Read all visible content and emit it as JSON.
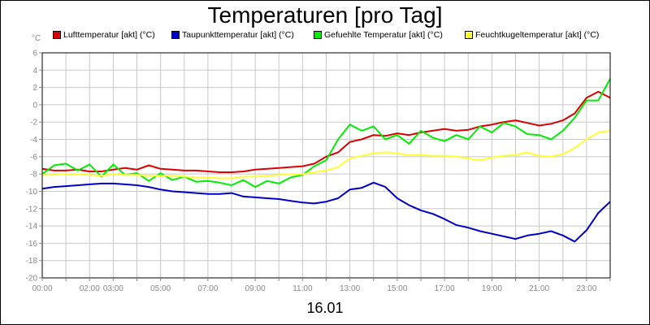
{
  "chart_data": {
    "type": "line",
    "title": "Temperaturen [pro Tag]",
    "xlabel": "16.01",
    "ylabel": "°C",
    "ylim": [
      -20,
      6
    ],
    "xlim": [
      0,
      24
    ],
    "grid": true,
    "legend_position": "top",
    "y_ticks": [
      6,
      4,
      2,
      0,
      -2,
      -4,
      -6,
      -8,
      -10,
      -12,
      -14,
      -16,
      -18,
      -20
    ],
    "x_tick_labels": [
      {
        "x": 0,
        "label": "00:00"
      },
      {
        "x": 2,
        "label": "02:00"
      },
      {
        "x": 3,
        "label": "03:00"
      },
      {
        "x": 5,
        "label": "05:00"
      },
      {
        "x": 7,
        "label": "07:00"
      },
      {
        "x": 9,
        "label": "09:00"
      },
      {
        "x": 11,
        "label": "11:00"
      },
      {
        "x": 13,
        "label": "13:00"
      },
      {
        "x": 15,
        "label": "15:00"
      },
      {
        "x": 17,
        "label": "17:00"
      },
      {
        "x": 19,
        "label": "19:00"
      },
      {
        "x": 21,
        "label": "21:00"
      },
      {
        "x": 23,
        "label": "23:00"
      }
    ],
    "series": [
      {
        "name": "Lufttemperatur [akt] (°C)",
        "color": "#dd0000",
        "x": [
          0,
          0.5,
          1,
          1.5,
          2,
          2.5,
          3,
          3.5,
          4,
          4.5,
          5,
          5.5,
          6,
          6.5,
          7,
          7.5,
          8,
          8.5,
          9,
          9.5,
          10,
          10.5,
          11,
          11.5,
          12,
          12.5,
          13,
          13.5,
          14,
          14.5,
          15,
          15.5,
          16,
          16.5,
          17,
          17.5,
          18,
          18.5,
          19,
          19.5,
          20,
          20.5,
          21,
          21.5,
          22,
          22.5,
          23,
          23.5,
          24
        ],
        "values": [
          -7.4,
          -7.6,
          -7.6,
          -7.5,
          -7.7,
          -7.7,
          -7.5,
          -7.3,
          -7.5,
          -7.0,
          -7.4,
          -7.5,
          -7.6,
          -7.6,
          -7.7,
          -7.8,
          -7.8,
          -7.7,
          -7.5,
          -7.4,
          -7.3,
          -7.2,
          -7.1,
          -6.8,
          -6.0,
          -5.5,
          -4.3,
          -4.0,
          -3.5,
          -3.6,
          -3.3,
          -3.5,
          -3.2,
          -3.0,
          -2.8,
          -3.0,
          -2.9,
          -2.5,
          -2.3,
          -2.0,
          -1.8,
          -2.1,
          -2.4,
          -2.2,
          -1.8,
          -1.0,
          0.8,
          1.5,
          0.8
        ]
      },
      {
        "name": "Taupunkttemperatur [akt] (°C)",
        "color": "#0000cc",
        "x": [
          0,
          0.5,
          1,
          1.5,
          2,
          2.5,
          3,
          3.5,
          4,
          4.5,
          5,
          5.5,
          6,
          6.5,
          7,
          7.5,
          8,
          8.5,
          9,
          9.5,
          10,
          10.5,
          11,
          11.5,
          12,
          12.5,
          13,
          13.5,
          14,
          14.5,
          15,
          15.5,
          16,
          16.5,
          17,
          17.5,
          18,
          18.5,
          19,
          19.5,
          20,
          20.5,
          21,
          21.5,
          22,
          22.5,
          23,
          23.5,
          24
        ],
        "values": [
          -9.7,
          -9.5,
          -9.4,
          -9.3,
          -9.2,
          -9.1,
          -9.1,
          -9.2,
          -9.3,
          -9.5,
          -9.8,
          -10.0,
          -10.1,
          -10.2,
          -10.3,
          -10.3,
          -10.2,
          -10.6,
          -10.7,
          -10.8,
          -10.9,
          -11.1,
          -11.3,
          -11.4,
          -11.2,
          -10.8,
          -9.8,
          -9.6,
          -9.0,
          -9.5,
          -10.8,
          -11.6,
          -12.2,
          -12.6,
          -13.2,
          -13.9,
          -14.2,
          -14.6,
          -14.9,
          -15.2,
          -15.5,
          -15.1,
          -14.9,
          -14.6,
          -15.1,
          -15.8,
          -14.5,
          -12.5,
          -11.2
        ]
      },
      {
        "name": "Gefuehlte Temperatur [akt] (°C)",
        "color": "#00ee00",
        "x": [
          0,
          0.5,
          1,
          1.5,
          2,
          2.5,
          3,
          3.5,
          4,
          4.5,
          5,
          5.5,
          6,
          6.5,
          7,
          7.5,
          8,
          8.5,
          9,
          9.5,
          10,
          10.5,
          11,
          11.5,
          12,
          12.5,
          13,
          13.5,
          14,
          14.5,
          15,
          15.5,
          16,
          16.5,
          17,
          17.5,
          18,
          18.5,
          19,
          19.5,
          20,
          20.5,
          21,
          21.5,
          22,
          22.5,
          23,
          23.5,
          24
        ],
        "values": [
          -8.0,
          -7.0,
          -6.8,
          -7.6,
          -6.9,
          -8.3,
          -6.9,
          -8.1,
          -7.9,
          -8.8,
          -7.9,
          -8.7,
          -8.3,
          -8.9,
          -8.8,
          -9.0,
          -9.3,
          -8.7,
          -9.5,
          -8.8,
          -9.1,
          -8.4,
          -8.1,
          -7.1,
          -6.4,
          -4.0,
          -2.3,
          -3.0,
          -2.5,
          -4.0,
          -3.5,
          -4.5,
          -3.0,
          -3.8,
          -4.2,
          -3.5,
          -4.0,
          -2.5,
          -3.2,
          -2.1,
          -2.5,
          -3.4,
          -3.5,
          -4.0,
          -3.0,
          -1.5,
          0.5,
          0.5,
          3.0
        ]
      },
      {
        "name": "Feuchtkugeltemperatur [akt] (°C)",
        "color": "#ffff33",
        "x": [
          0,
          0.5,
          1,
          1.5,
          2,
          2.5,
          3,
          3.5,
          4,
          4.5,
          5,
          5.5,
          6,
          6.5,
          7,
          7.5,
          8,
          8.5,
          9,
          9.5,
          10,
          10.5,
          11,
          11.5,
          12,
          12.5,
          13,
          13.5,
          14,
          14.5,
          15,
          15.5,
          16,
          16.5,
          17,
          17.5,
          18,
          18.5,
          19,
          19.5,
          20,
          20.5,
          21,
          21.5,
          22,
          22.5,
          23,
          23.5,
          24
        ],
        "values": [
          -8.1,
          -8.1,
          -8.0,
          -8.0,
          -8.1,
          -8.2,
          -8.0,
          -8.1,
          -8.1,
          -8.2,
          -8.2,
          -8.2,
          -8.3,
          -8.4,
          -8.4,
          -8.5,
          -8.5,
          -8.3,
          -8.3,
          -8.2,
          -8.1,
          -8.0,
          -8.0,
          -7.8,
          -7.6,
          -7.2,
          -6.2,
          -5.9,
          -5.6,
          -5.5,
          -5.6,
          -5.8,
          -5.8,
          -5.9,
          -5.9,
          -6.0,
          -6.2,
          -6.4,
          -6.1,
          -5.9,
          -5.8,
          -5.5,
          -5.9,
          -6.0,
          -5.7,
          -5.0,
          -4.0,
          -3.2,
          -3.0
        ]
      }
    ]
  }
}
